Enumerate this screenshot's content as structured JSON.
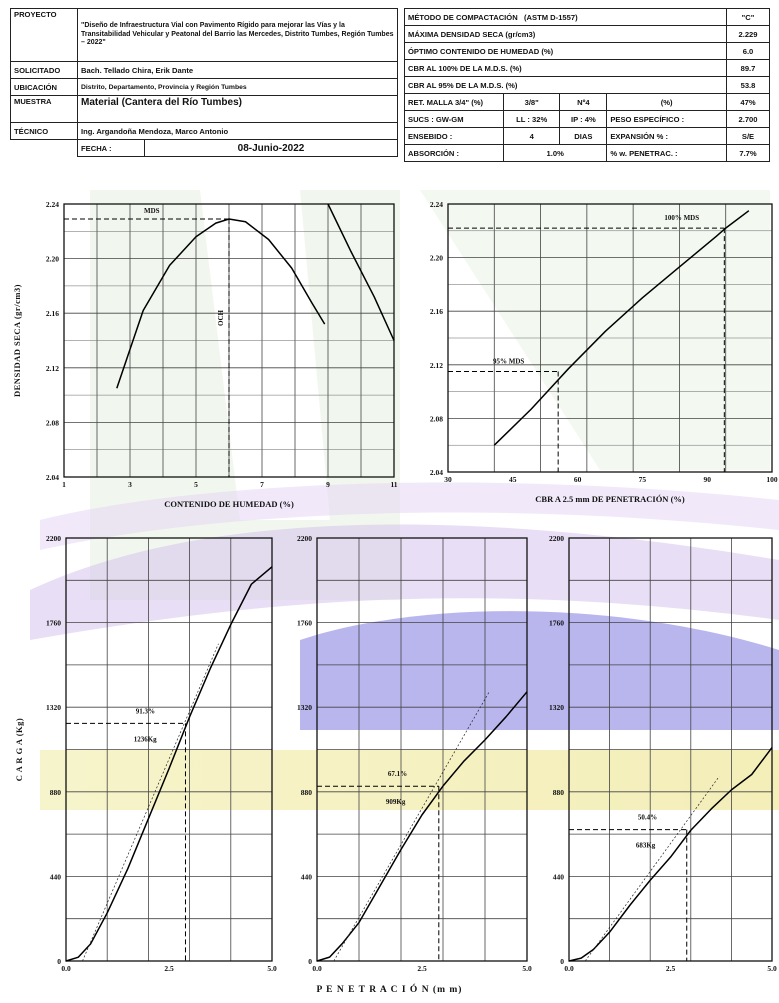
{
  "header": {
    "proyecto_label": "PROYECTO",
    "proyecto_value": "\"Diseño de Infraestructura Vial con Pavimento Rígido para mejorar las Vías y la Transitabilidad Vehicular y Peatonal del Barrio las Mercedes, Distrito Tumbes, Región Tumbes – 2022\"",
    "solicitado_label": "SOLICITADO",
    "solicitado_value": "Bach. Tellado Chira, Erik Dante",
    "ubicacion_label": "UBICACIÓN",
    "ubicacion_value": "Distrito, Departamento, Provincia y Región Tumbes",
    "muestra_label": "MUESTRA",
    "muestra_value": "Material (Cantera del Río Tumbes)",
    "tecnico_label": "TÉCNICO",
    "tecnico_value": "Ing. Argandoña Mendoza, Marco Antonio",
    "fecha_label": "FECHA :",
    "fecha_value": "08-Junio-2022"
  },
  "results": {
    "metodo_label": "MÉTODO DE COMPACTACIÓN",
    "metodo_value": "(ASTM D-1557)",
    "metodo_unit": "\"C\"",
    "mds_label": "MÁXIMA DENSIDAD SECA (gr/cm3)",
    "mds_value": "2.229",
    "och_label": "ÓPTIMO CONTENIDO DE HUMEDAD (%)",
    "och_value": "6.0",
    "cbr100_label": "CBR AL 100% DE LA M.D.S. (%)",
    "cbr100_value": "89.7",
    "cbr95_label": "CBR AL 95% DE LA M.D.S. (%)",
    "cbr95_value": "53.8",
    "ret_label": "RET. MALLA 3/4\" (%)",
    "ret_a": "3/8\"",
    "ret_b": "Nº4",
    "ret_c": "(%)",
    "ret_value": "47%",
    "sucs_label": "SUCS : GW-GM",
    "ll": "LL : 32%",
    "ip": "IP : 4%",
    "peso_label": "PESO ESPECÍFICO :",
    "peso_value": "2.700",
    "ensebido_label": "ENSEBIDO :",
    "ensebido_value": "4",
    "dias": "DIAS",
    "expansion_label": "EXPANSIÓN % :",
    "expansion_value": "S/E",
    "absorcion_label": "ABSORCIÓN :",
    "absorcion_value": "1.0%",
    "penetrac_label": "% w. PENETRAC. :",
    "penetrac_value": "7.7%"
  },
  "chart_data": [
    {
      "type": "line",
      "name": "proctor",
      "xlabel": "CONTENIDO DE HUMEDAD (%)",
      "ylabel": "DENSIDAD SECA (gr/cm3)",
      "xlim": [
        1,
        11
      ],
      "ylim": [
        2.04,
        2.24
      ],
      "xticks": [
        "1",
        "3",
        "5",
        "7",
        "9",
        "11"
      ],
      "yticks": [
        "2.04",
        "2.08",
        "2.12",
        "2.16",
        "2.20",
        "2.24"
      ],
      "grid": true,
      "series": [
        {
          "x": [
            2.6,
            3.4,
            4.2,
            5.0,
            5.6,
            6.0,
            6.5,
            7.2,
            7.9,
            8.5,
            8.9
          ],
          "y": [
            2.105,
            2.162,
            2.195,
            2.216,
            2.226,
            2.229,
            2.227,
            2.214,
            2.193,
            2.168,
            2.152
          ]
        },
        {
          "x": [
            9.0,
            9.7,
            10.4,
            11.0
          ],
          "y": [
            2.24,
            2.205,
            2.172,
            2.14
          ]
        }
      ],
      "annotations": [
        {
          "text": "MDS",
          "y": 2.229
        },
        {
          "text": "OCH",
          "x": 6.0
        }
      ]
    },
    {
      "type": "line",
      "name": "cbr-density",
      "xlabel": "CBR A 2.5 mm DE PENETRACIÓN (%)",
      "xlim": [
        30,
        100
      ],
      "ylim": [
        2.04,
        2.24
      ],
      "xticks": [
        "30",
        "45",
        "60",
        "75",
        "90",
        "100"
      ],
      "yticks": [
        "2.04",
        "2.08",
        "2.12",
        "2.16",
        "2.20",
        "2.24"
      ],
      "grid": true,
      "series": [
        {
          "x": [
            40,
            48,
            56,
            64,
            72,
            80,
            88,
            90,
            95
          ],
          "y": [
            2.06,
            2.087,
            2.117,
            2.145,
            2.17,
            2.193,
            2.216,
            2.222,
            2.235
          ]
        }
      ],
      "annotations": [
        {
          "text": "100% MDS",
          "x": 89.7,
          "y": 2.222
        },
        {
          "text": "95% MDS",
          "x": 53.8,
          "y": 2.115
        }
      ]
    },
    {
      "type": "line",
      "name": "load-1",
      "ylabel": "C A R G A (Kg)",
      "xlim": [
        0,
        5
      ],
      "ylim": [
        0,
        2200
      ],
      "xticks": [
        "0.0",
        "2.5",
        "5.0"
      ],
      "yticks": [
        "0",
        "440",
        "880",
        "1320",
        "1760",
        "2200"
      ],
      "grid": true,
      "series": [
        {
          "x": [
            0,
            0.3,
            0.6,
            1.0,
            1.5,
            2.0,
            2.5,
            3.0,
            3.5,
            4.0,
            4.5,
            5.0
          ],
          "y": [
            0,
            20,
            90,
            250,
            480,
            740,
            1000,
            1270,
            1520,
            1750,
            1960,
            2050
          ]
        }
      ],
      "tangent": {
        "x": [
          0.4,
          3.7
        ],
        "y": [
          0,
          1650
        ]
      },
      "annotations": [
        {
          "text": "91.3%",
          "x": 2.9,
          "y": 1236
        },
        {
          "text": "1236Kg",
          "x": 2.9,
          "y": 1236
        }
      ]
    },
    {
      "type": "line",
      "name": "load-2",
      "xlim": [
        0,
        5
      ],
      "ylim": [
        0,
        2200
      ],
      "xticks": [
        "0.0",
        "2.5",
        "5.0"
      ],
      "yticks": [
        "0",
        "440",
        "880",
        "1320",
        "1760",
        "2200"
      ],
      "grid": true,
      "series": [
        {
          "x": [
            0,
            0.3,
            0.6,
            1.0,
            1.5,
            2.0,
            2.5,
            3.0,
            3.5,
            4.0,
            4.5,
            5.0
          ],
          "y": [
            0,
            20,
            90,
            200,
            390,
            580,
            760,
            910,
            1040,
            1150,
            1270,
            1400
          ]
        }
      ],
      "tangent": {
        "x": [
          0.4,
          4.1
        ],
        "y": [
          0,
          1400
        ]
      },
      "annotations": [
        {
          "text": "67.1%",
          "x": 2.9,
          "y": 909
        },
        {
          "text": "909Kg",
          "x": 2.9,
          "y": 909
        }
      ]
    },
    {
      "type": "line",
      "name": "load-3",
      "xlim": [
        0,
        5
      ],
      "ylim": [
        0,
        2200
      ],
      "xticks": [
        "0.0",
        "2.5",
        "5.0"
      ],
      "yticks": [
        "0",
        "440",
        "880",
        "1320",
        "1760",
        "2200"
      ],
      "grid": true,
      "series": [
        {
          "x": [
            0,
            0.3,
            0.6,
            1.0,
            1.5,
            2.0,
            2.5,
            3.0,
            3.5,
            4.0,
            4.5,
            5.0
          ],
          "y": [
            0,
            15,
            60,
            150,
            290,
            420,
            540,
            680,
            790,
            890,
            970,
            1110
          ]
        }
      ],
      "tangent": {
        "x": [
          0.4,
          3.7
        ],
        "y": [
          0,
          960
        ]
      },
      "annotations": [
        {
          "text": "50.4%",
          "x": 2.9,
          "y": 683
        },
        {
          "text": "683Kg",
          "x": 2.9,
          "y": 683
        }
      ]
    }
  ],
  "penetracion_label": "P E N E T R A C I Ó N  (m m)"
}
